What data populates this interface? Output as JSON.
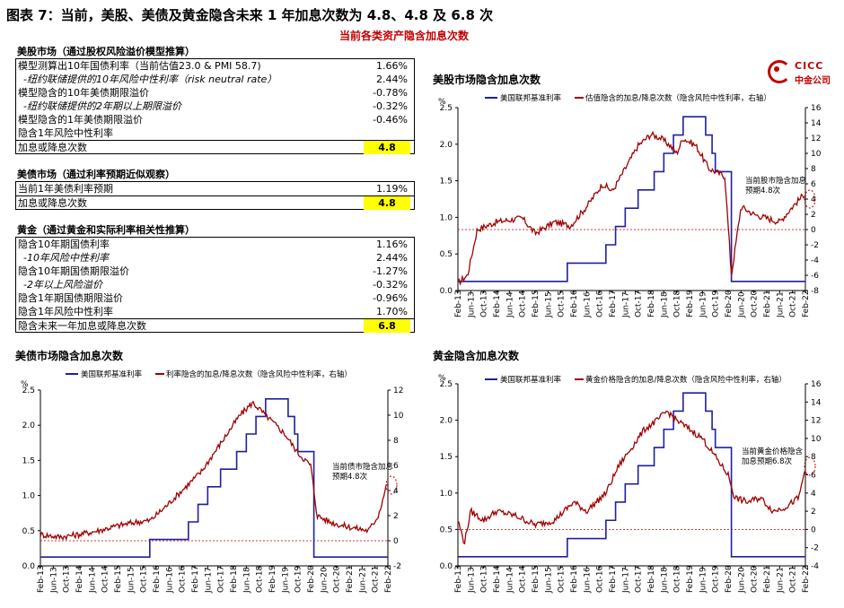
{
  "title": "图表 7：当前，美股、美债及黄金隐含未来 1 年加息次数为 4.8、4.8 及 6.8 次",
  "subtitle": "当前各类资产隐含加息次数",
  "logo": {
    "en": "CICC",
    "cn": "中金公司"
  },
  "tables": [
    {
      "header": "美股市场（通过股权风险溢价模型推算）",
      "rows": [
        {
          "label": "模型测算出10年国债利率（当前估值23.0 & PMI 58.7)",
          "value": "1.66%",
          "italic": false
        },
        {
          "label": "-纽约联储提供的10年风险中性利率（risk neutral rate）",
          "value": "2.44%",
          "italic": true
        },
        {
          "label": "模型隐含的10年美债期限溢价",
          "value": "-0.78%",
          "italic": false
        },
        {
          "label": "-纽约联储提供的2年期以上期限溢价",
          "value": "-0.32%",
          "italic": true
        },
        {
          "label": "模型隐含的1年美债期限溢价",
          "value": "-0.46%",
          "italic": false
        },
        {
          "label": "隐含1年风险中性利率",
          "value": "",
          "italic": false
        },
        {
          "label": "加息或降息次数",
          "value": "4.8",
          "highlight": true,
          "sep": true
        }
      ]
    },
    {
      "header": "美债市场（通过利率预期近似观察）",
      "rows": [
        {
          "label": "当前1年美债利率预期",
          "value": "1.19%",
          "italic": false
        },
        {
          "label": "加息或降息次数",
          "value": "4.8",
          "highlight": true,
          "sep": true
        }
      ]
    },
    {
      "header": "黄金（通过黄金和实际利率相关性推算）",
      "rows": [
        {
          "label": "隐含10年期国债利率",
          "value": "1.16%",
          "italic": false
        },
        {
          "label": "-10年风险中性利率",
          "value": "2.44%",
          "italic": true
        },
        {
          "label": "隐含10年期国债期限溢价",
          "value": "-1.27%",
          "italic": false
        },
        {
          "label": "-2年以上风险溢价",
          "value": "-0.32%",
          "italic": true
        },
        {
          "label": "隐含1年期国债期限溢价",
          "value": "-0.96%",
          "italic": false
        },
        {
          "label": "隐含1年风险中性利率",
          "value": "1.70%",
          "italic": false
        },
        {
          "label": "隐含未来一年加息或降息次数",
          "value": "6.8",
          "highlight": true,
          "sep": true
        }
      ]
    }
  ],
  "chart_data": [
    {
      "type": "line",
      "title": "美股市场隐含加息次数",
      "unit_left": "%",
      "legend": [
        "美国联邦基准利率",
        "估值隐含的加息/降息次数（隐含风险中性利率，右轴）"
      ],
      "annotation": [
        "当前股市隐含加息",
        "预期4.8次"
      ],
      "ylim_left": [
        0,
        2.5
      ],
      "yticks_left": [
        "0.0",
        "0.5",
        "1.0",
        "1.5",
        "2.0",
        "2.5"
      ],
      "ylim_right": [
        -8,
        16
      ],
      "yticks_right": [
        "-8",
        "-6",
        "-4",
        "-2",
        "0",
        "2",
        "4",
        "6",
        "8",
        "10",
        "12",
        "14",
        "16"
      ],
      "x_ticks": [
        "Feb-13",
        "Jun-13",
        "Oct-13",
        "Feb-14",
        "Jun-14",
        "Oct-14",
        "Feb-15",
        "Jun-15",
        "Oct-15",
        "Feb-16",
        "Jun-16",
        "Oct-16",
        "Feb-17",
        "Jun-17",
        "Oct-17",
        "Feb-18",
        "Jun-18",
        "Oct-18",
        "Feb-19",
        "Jun-19",
        "Oct-19",
        "Feb-20",
        "Jun-20",
        "Oct-20",
        "Feb-21",
        "Jun-21",
        "Oct-21",
        "Feb-22"
      ],
      "fed_rate_steps": [
        [
          0,
          0.125
        ],
        [
          34,
          0.375
        ],
        [
          46,
          0.625
        ],
        [
          49,
          0.875
        ],
        [
          52,
          1.125
        ],
        [
          56,
          1.375
        ],
        [
          61,
          1.625
        ],
        [
          64,
          1.875
        ],
        [
          67,
          2.125
        ],
        [
          70,
          2.375
        ],
        [
          77,
          2.125
        ],
        [
          79,
          1.875
        ],
        [
          80,
          1.625
        ],
        [
          85,
          0.125
        ],
        [
          108,
          0.125
        ]
      ],
      "series_right": [
        [
          0,
          -7
        ],
        [
          3,
          -6
        ],
        [
          6,
          0
        ],
        [
          12,
          1
        ],
        [
          20,
          1.5
        ],
        [
          24,
          -0.5
        ],
        [
          30,
          1
        ],
        [
          35,
          0.5
        ],
        [
          40,
          3
        ],
        [
          45,
          6
        ],
        [
          48,
          5
        ],
        [
          52,
          8
        ],
        [
          56,
          11
        ],
        [
          60,
          12.5
        ],
        [
          63,
          12
        ],
        [
          66,
          11
        ],
        [
          68,
          10
        ],
        [
          70,
          12
        ],
        [
          74,
          11
        ],
        [
          78,
          8
        ],
        [
          83,
          7
        ],
        [
          85,
          -6
        ],
        [
          88,
          3
        ],
        [
          92,
          2
        ],
        [
          96,
          1.5
        ],
        [
          100,
          1
        ],
        [
          104,
          3
        ],
        [
          108,
          4.8
        ]
      ],
      "zero_line_right": 0
    },
    {
      "type": "line",
      "title": "美债市场隐含加息次数",
      "unit_left": "%",
      "legend": [
        "美国联邦基准利率",
        "利率隐含的加息/降息次数（隐含风险中性利率，右轴）"
      ],
      "annotation": [
        "当前债市隐含加息",
        "预期4.8次"
      ],
      "ylim_left": [
        0,
        2.5
      ],
      "yticks_left": [
        "0.0",
        "0.5",
        "1.0",
        "1.5",
        "2.0",
        "2.5"
      ],
      "ylim_right": [
        -2,
        12
      ],
      "yticks_right": [
        "-2",
        "0",
        "2",
        "4",
        "6",
        "8",
        "10",
        "12"
      ],
      "x_ticks": [
        "Feb-13",
        "Jun-13",
        "Oct-13",
        "Feb-14",
        "Jun-14",
        "Oct-14",
        "Feb-15",
        "Jun-15",
        "Oct-15",
        "Feb-16",
        "Jun-16",
        "Oct-16",
        "Feb-17",
        "Jun-17",
        "Oct-17",
        "Feb-18",
        "Jun-18",
        "Oct-18",
        "Feb-19",
        "Jun-19",
        "Oct-19",
        "Feb-20",
        "Jun-20",
        "Oct-20",
        "Feb-21",
        "Jun-21",
        "Oct-21",
        "Feb-22"
      ],
      "fed_rate_steps": [
        [
          0,
          0.125
        ],
        [
          34,
          0.375
        ],
        [
          46,
          0.625
        ],
        [
          49,
          0.875
        ],
        [
          52,
          1.125
        ],
        [
          56,
          1.375
        ],
        [
          61,
          1.625
        ],
        [
          64,
          1.875
        ],
        [
          67,
          2.125
        ],
        [
          70,
          2.375
        ],
        [
          77,
          2.125
        ],
        [
          79,
          1.875
        ],
        [
          80,
          1.625
        ],
        [
          85,
          0.125
        ],
        [
          108,
          0.125
        ]
      ],
      "series_right": [
        [
          0,
          0.5
        ],
        [
          6,
          0.3
        ],
        [
          12,
          0.5
        ],
        [
          18,
          0.8
        ],
        [
          24,
          1.2
        ],
        [
          30,
          1.5
        ],
        [
          34,
          1.6
        ],
        [
          38,
          2.5
        ],
        [
          42,
          3.5
        ],
        [
          46,
          4.5
        ],
        [
          50,
          5.5
        ],
        [
          54,
          7
        ],
        [
          58,
          8.5
        ],
        [
          62,
          10
        ],
        [
          66,
          11
        ],
        [
          68,
          10.5
        ],
        [
          72,
          9.5
        ],
        [
          76,
          8.5
        ],
        [
          80,
          7
        ],
        [
          84,
          6
        ],
        [
          86,
          2
        ],
        [
          90,
          1.5
        ],
        [
          94,
          1.2
        ],
        [
          98,
          1
        ],
        [
          102,
          0.8
        ],
        [
          105,
          2
        ],
        [
          108,
          4.8
        ]
      ],
      "zero_line_right": 0
    },
    {
      "type": "line",
      "title": "黄金隐含加息次数",
      "unit_left": "%",
      "legend": [
        "美国联邦基准利率",
        "黄金价格隐含的加息/降息次数（隐含风险中性利率，右轴）"
      ],
      "annotation": [
        "当前黄金价格隐含",
        "加息预期6.8次"
      ],
      "ylim_left": [
        0,
        2.5
      ],
      "yticks_left": [
        "0.0",
        "0.5",
        "1.0",
        "1.5",
        "2.0",
        "2.5"
      ],
      "ylim_right": [
        -4,
        16
      ],
      "yticks_right": [
        "-4",
        "-2",
        "0",
        "2",
        "4",
        "6",
        "8",
        "10",
        "12",
        "14",
        "16"
      ],
      "x_ticks": [
        "Feb-13",
        "Jun-13",
        "Oct-13",
        "Feb-14",
        "Jun-14",
        "Oct-14",
        "Feb-15",
        "Jun-15",
        "Oct-15",
        "Feb-16",
        "Jun-16",
        "Oct-16",
        "Feb-17",
        "Jun-17",
        "Oct-17",
        "Feb-18",
        "Jun-18",
        "Oct-18",
        "Feb-19",
        "Jun-19",
        "Oct-19",
        "Feb-20",
        "Jun-20",
        "Oct-20",
        "Feb-21",
        "Jun-21",
        "Oct-21",
        "Feb-22"
      ],
      "fed_rate_steps": [
        [
          0,
          0.125
        ],
        [
          34,
          0.375
        ],
        [
          46,
          0.625
        ],
        [
          49,
          0.875
        ],
        [
          52,
          1.125
        ],
        [
          56,
          1.375
        ],
        [
          61,
          1.625
        ],
        [
          64,
          1.875
        ],
        [
          67,
          2.125
        ],
        [
          70,
          2.375
        ],
        [
          77,
          2.125
        ],
        [
          79,
          1.875
        ],
        [
          80,
          1.625
        ],
        [
          85,
          0.125
        ],
        [
          108,
          0.125
        ]
      ],
      "series_right": [
        [
          0,
          1
        ],
        [
          2,
          -1.5
        ],
        [
          4,
          2
        ],
        [
          8,
          1
        ],
        [
          12,
          2
        ],
        [
          18,
          1.5
        ],
        [
          24,
          0.5
        ],
        [
          30,
          1
        ],
        [
          36,
          3
        ],
        [
          40,
          2
        ],
        [
          46,
          4
        ],
        [
          50,
          7
        ],
        [
          54,
          9
        ],
        [
          58,
          11
        ],
        [
          62,
          12
        ],
        [
          65,
          13
        ],
        [
          68,
          12
        ],
        [
          72,
          11
        ],
        [
          76,
          10
        ],
        [
          80,
          8
        ],
        [
          84,
          6
        ],
        [
          86,
          3.5
        ],
        [
          90,
          3
        ],
        [
          94,
          3.5
        ],
        [
          98,
          2
        ],
        [
          102,
          2.5
        ],
        [
          106,
          3.5
        ],
        [
          108,
          6.8
        ]
      ],
      "zero_line_right": 0
    }
  ],
  "colors": {
    "fed": "#1f1fa0",
    "implied": "#a00000",
    "accent": "#c00000",
    "highlight": "#ffff00"
  }
}
